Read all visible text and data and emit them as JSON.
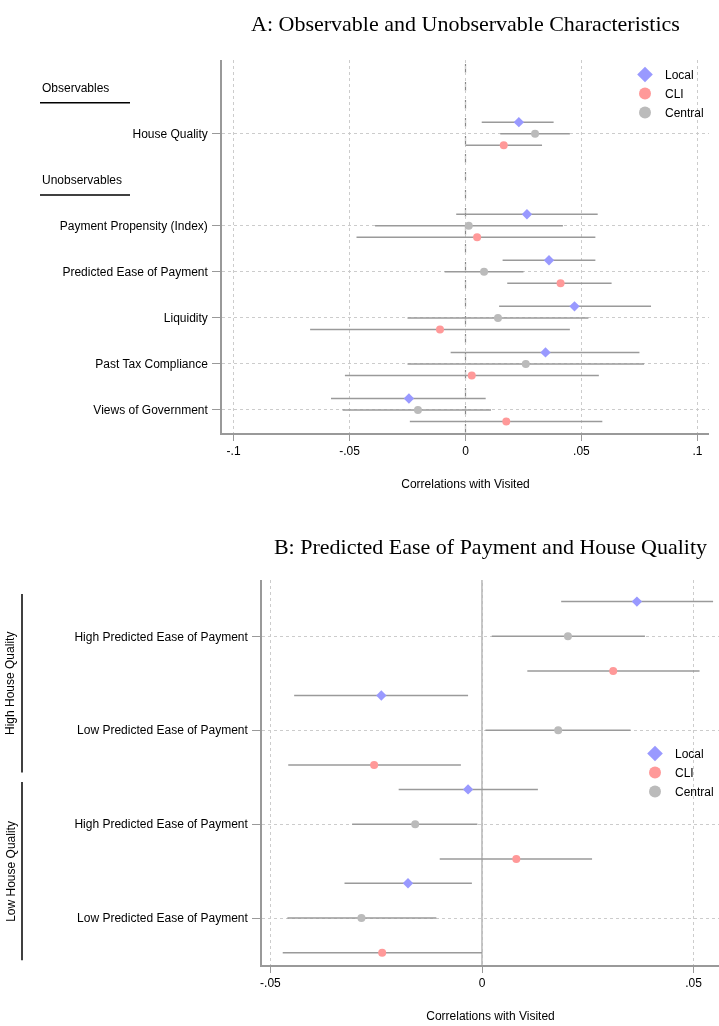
{
  "chart_data": [
    {
      "type": "scatter",
      "title": "A: Observable and Unobservable Characteristics",
      "xlabel": "Correlations with Visited",
      "orientation": "horizontal",
      "annotations": [
        "Observables",
        "Unobservables"
      ],
      "categories": [
        null,
        "House Quality",
        null,
        "Payment Propensity (Index)",
        "Predicted Ease of Payment",
        "Liquidity",
        "Past Tax Compliance",
        "Views of Government"
      ],
      "series": [
        {
          "name": "Local",
          "color": "#9999ff",
          "marker": "diamond",
          "values": [
            null,
            0.023,
            null,
            0.0265,
            0.036,
            0.047,
            0.0345,
            -0.0244
          ],
          "errors": [
            null,
            [
              0.007,
              0.038
            ],
            null,
            [
              -0.004,
              0.057
            ],
            [
              0.016,
              0.056
            ],
            [
              0.0145,
              0.08
            ],
            [
              -0.0064,
              0.075
            ],
            [
              -0.058,
              0.0087
            ]
          ]
        },
        {
          "name": "CLI",
          "color": "#ff9999",
          "marker": "circle",
          "values": [
            null,
            0.0165,
            null,
            0.005,
            0.041,
            -0.011,
            0.0027,
            0.0176
          ],
          "errors": [
            null,
            [
              0.0,
              0.033
            ],
            null,
            [
              -0.047,
              0.056
            ],
            [
              0.018,
              0.063
            ],
            [
              -0.067,
              0.045
            ],
            [
              -0.052,
              0.0575
            ],
            [
              -0.024,
              0.059
            ]
          ]
        },
        {
          "name": "Central",
          "color": "#bbbbbb",
          "marker": "circle",
          "values": [
            null,
            0.03,
            null,
            0.0014,
            0.008,
            0.014,
            0.026,
            -0.0205
          ],
          "errors": [
            null,
            [
              0.015,
              0.045
            ],
            null,
            [
              -0.039,
              0.042
            ],
            [
              -0.009,
              0.025
            ],
            [
              -0.025,
              0.053
            ],
            [
              -0.025,
              0.077
            ],
            [
              -0.053,
              0.011
            ]
          ]
        }
      ],
      "xlim": [
        -0.105,
        0.105
      ],
      "xticks": [
        {
          "value": -0.1,
          "label": "-.1"
        },
        {
          "value": -0.05,
          "label": "-.05"
        },
        0,
        {
          "value": 0.05,
          "label": ".05"
        },
        {
          "value": 0.1,
          "label": ".1"
        }
      ],
      "ref_lines": [
        {
          "axis": "x",
          "value": 0,
          "line_style": "dashed",
          "color": "#888888"
        }
      ],
      "grid": true,
      "legend": "top right"
    },
    {
      "type": "scatter",
      "title": "B: Predicted Ease of Payment and House Quality",
      "xlabel": "Correlations with Visited",
      "orientation": "horizontal",
      "categories": [
        "High Predicted Ease of Payment",
        "Low Predicted Ease of Payment",
        "High Predicted Ease of Payment",
        "Low Predicted Ease of Payment"
      ],
      "series": [
        {
          "name": "Local",
          "color": "#9999ff",
          "marker": "diamond",
          "values": [
            0.0366,
            -0.0238,
            -0.0033,
            -0.0175
          ],
          "errors": [
            [
              0.0187,
              0.0546
            ],
            [
              -0.0444,
              -0.0033
            ],
            [
              -0.0197,
              0.0132
            ],
            [
              -0.0325,
              -0.0024
            ]
          ]
        },
        {
          "name": "CLI",
          "color": "#ff9999",
          "marker": "circle",
          "values": [
            0.031,
            -0.0255,
            0.0081,
            -0.0236
          ],
          "errors": [
            [
              0.0107,
              0.0514
            ],
            [
              -0.0458,
              -0.005
            ],
            [
              -0.01,
              0.026
            ],
            [
              -0.0471,
              0.0
            ]
          ]
        },
        {
          "name": "Central",
          "color": "#bbbbbb",
          "marker": "circle",
          "values": [
            0.0203,
            0.018,
            -0.0158,
            -0.0285
          ],
          "errors": [
            [
              0.0023,
              0.0385
            ],
            [
              0.0008,
              0.0351
            ],
            [
              -0.0307,
              -0.0011
            ],
            [
              -0.046,
              -0.0108
            ]
          ]
        }
      ],
      "xlim": [
        -0.052,
        0.056
      ],
      "xticks": [
        {
          "value": -0.05,
          "label": "-.05"
        },
        0,
        {
          "value": 0.05,
          "label": ".05"
        }
      ],
      "ref_lines": [
        {
          "axis": "x",
          "value": 0,
          "line_style": "solid",
          "color": "#999999"
        }
      ],
      "annotations": [
        "High House Quality",
        "Low House Quality"
      ],
      "grid": true,
      "legend": "right"
    }
  ]
}
